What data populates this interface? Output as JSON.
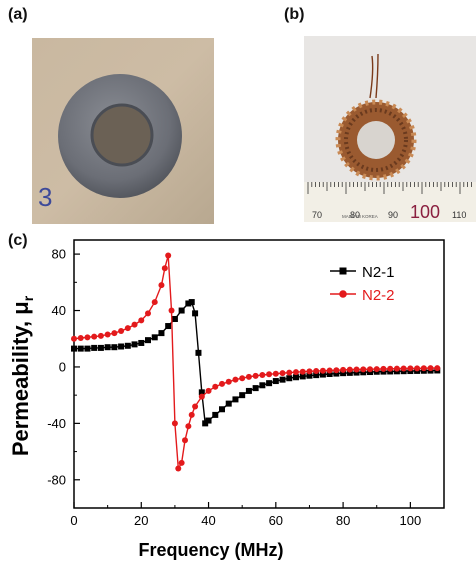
{
  "panels": {
    "a": "(a)",
    "b": "(b)",
    "c": "(c)"
  },
  "ruler": {
    "ticks": [
      "70",
      "80",
      "90",
      "100",
      "110"
    ],
    "maker": "MADE IN KOREA"
  },
  "photo_a_marking": "3",
  "chart_data": {
    "type": "line",
    "xlabel": "Frequency (MHz)",
    "ylabel": "Permeability, μ",
    "ylabel_sub": "r",
    "xlim": [
      0,
      110
    ],
    "ylim": [
      -100,
      90
    ],
    "xticks": [
      "0",
      "20",
      "40",
      "60",
      "80",
      "100"
    ],
    "yticks": [
      "80",
      "40",
      "0",
      "-40",
      "-80"
    ],
    "legend": "top-right",
    "series": [
      {
        "name": "N2-1",
        "color": "#000000",
        "marker": "square",
        "points": [
          [
            0,
            13
          ],
          [
            2,
            13
          ],
          [
            4,
            13
          ],
          [
            6,
            13.5
          ],
          [
            8,
            13.5
          ],
          [
            10,
            14
          ],
          [
            12,
            14
          ],
          [
            14,
            14.5
          ],
          [
            16,
            15
          ],
          [
            18,
            16
          ],
          [
            20,
            17
          ],
          [
            22,
            19
          ],
          [
            24,
            21
          ],
          [
            26,
            24
          ],
          [
            28,
            29
          ],
          [
            30,
            34
          ],
          [
            32,
            40
          ],
          [
            34,
            45
          ],
          [
            35,
            46
          ],
          [
            36,
            38
          ],
          [
            37,
            10
          ],
          [
            38,
            -18
          ],
          [
            39,
            -40
          ],
          [
            40,
            -38
          ],
          [
            42,
            -34
          ],
          [
            44,
            -30
          ],
          [
            46,
            -26
          ],
          [
            48,
            -23
          ],
          [
            50,
            -20
          ],
          [
            52,
            -17
          ],
          [
            54,
            -15
          ],
          [
            56,
            -13
          ],
          [
            58,
            -11.5
          ],
          [
            60,
            -10
          ],
          [
            62,
            -9
          ],
          [
            64,
            -8
          ],
          [
            66,
            -7.3
          ],
          [
            68,
            -6.7
          ],
          [
            70,
            -6.2
          ],
          [
            72,
            -5.8
          ],
          [
            74,
            -5.4
          ],
          [
            76,
            -5
          ],
          [
            78,
            -4.7
          ],
          [
            80,
            -4.4
          ],
          [
            82,
            -4.2
          ],
          [
            84,
            -4
          ],
          [
            86,
            -3.8
          ],
          [
            88,
            -3.6
          ],
          [
            90,
            -3.4
          ],
          [
            92,
            -3.3
          ],
          [
            94,
            -3.2
          ],
          [
            96,
            -3.1
          ],
          [
            98,
            -3
          ],
          [
            100,
            -2.9
          ],
          [
            102,
            -2.8
          ],
          [
            104,
            -2.7
          ],
          [
            106,
            -2.6
          ],
          [
            108,
            -2.5
          ]
        ]
      },
      {
        "name": "N2-2",
        "color": "#e31a1c",
        "marker": "circle",
        "points": [
          [
            0,
            20
          ],
          [
            2,
            20.5
          ],
          [
            4,
            21
          ],
          [
            6,
            21.5
          ],
          [
            8,
            22
          ],
          [
            10,
            23
          ],
          [
            12,
            24
          ],
          [
            14,
            25.5
          ],
          [
            16,
            27.5
          ],
          [
            18,
            30
          ],
          [
            20,
            33
          ],
          [
            22,
            38
          ],
          [
            24,
            46
          ],
          [
            26,
            58
          ],
          [
            27,
            70
          ],
          [
            28,
            79
          ],
          [
            29,
            40
          ],
          [
            30,
            -40
          ],
          [
            31,
            -72
          ],
          [
            32,
            -68
          ],
          [
            33,
            -52
          ],
          [
            34,
            -42
          ],
          [
            35,
            -34
          ],
          [
            36,
            -28
          ],
          [
            38,
            -21
          ],
          [
            40,
            -17
          ],
          [
            42,
            -14
          ],
          [
            44,
            -12
          ],
          [
            46,
            -10.5
          ],
          [
            48,
            -9
          ],
          [
            50,
            -8
          ],
          [
            52,
            -7
          ],
          [
            54,
            -6.3
          ],
          [
            56,
            -5.7
          ],
          [
            58,
            -5.2
          ],
          [
            60,
            -4.8
          ],
          [
            62,
            -4.4
          ],
          [
            64,
            -4
          ],
          [
            66,
            -3.7
          ],
          [
            68,
            -3.4
          ],
          [
            70,
            -3.1
          ],
          [
            72,
            -2.9
          ],
          [
            74,
            -2.7
          ],
          [
            76,
            -2.5
          ],
          [
            78,
            -2.3
          ],
          [
            80,
            -2.1
          ],
          [
            82,
            -1.9
          ],
          [
            84,
            -1.8
          ],
          [
            86,
            -1.7
          ],
          [
            88,
            -1.6
          ],
          [
            90,
            -1.5
          ],
          [
            92,
            -1.4
          ],
          [
            94,
            -1.3
          ],
          [
            96,
            -1.2
          ],
          [
            98,
            -1.1
          ],
          [
            100,
            -1
          ],
          [
            102,
            -1
          ],
          [
            104,
            -0.9
          ],
          [
            106,
            -0.8
          ],
          [
            108,
            -0.8
          ]
        ]
      }
    ]
  }
}
